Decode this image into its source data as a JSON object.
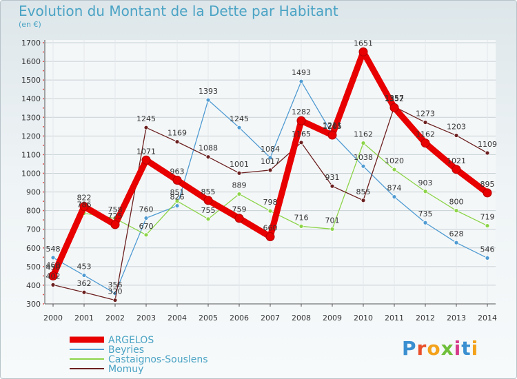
{
  "header": {
    "title": "Evolution du Montant de la Dette par Habitant",
    "unit": "(en €)"
  },
  "logo": {
    "text": "Proxiti"
  },
  "chart_data": {
    "type": "line",
    "title": "Evolution du Montant de la Dette par Habitant",
    "ylabel": "(en €)",
    "xlabel": "",
    "ylim": [
      300,
      1700
    ],
    "yticks": [
      300,
      400,
      500,
      600,
      700,
      800,
      900,
      1000,
      1100,
      1200,
      1300,
      1400,
      1500,
      1600,
      1700
    ],
    "grid": true,
    "legend_position": "bottom-left",
    "categories": [
      "2000",
      "2001",
      "2002",
      "2003",
      "2004",
      "2005",
      "2006",
      "2007",
      "2008",
      "2009",
      "2010",
      "2011",
      "2012",
      "2013",
      "2014"
    ],
    "series": [
      {
        "name": "ARGELOS",
        "color": "#e80000",
        "values": [
          450,
          822,
          725,
          1071,
          963,
          855,
          759,
          660,
          1282,
          1205,
          1651,
          1352,
          1162,
          1021,
          895
        ]
      },
      {
        "name": "Beyries",
        "color": "#4f9bd2",
        "values": [
          548,
          453,
          356,
          760,
          826,
          1393,
          1245,
          1084,
          1493,
          1211,
          1038,
          874,
          735,
          628,
          546
        ]
      },
      {
        "name": "Castaignos-Souslens",
        "color": "#8cd448",
        "values": [
          460,
          786,
          758,
          670,
          851,
          755,
          889,
          798,
          716,
          701,
          1162,
          1020,
          903,
          800,
          719
        ]
      },
      {
        "name": "Momuy",
        "color": "#6b1f1f",
        "values": [
          402,
          362,
          320,
          1245,
          1169,
          1088,
          1001,
          1017,
          1165,
          931,
          855,
          1357,
          1273,
          1203,
          1109
        ]
      }
    ]
  }
}
